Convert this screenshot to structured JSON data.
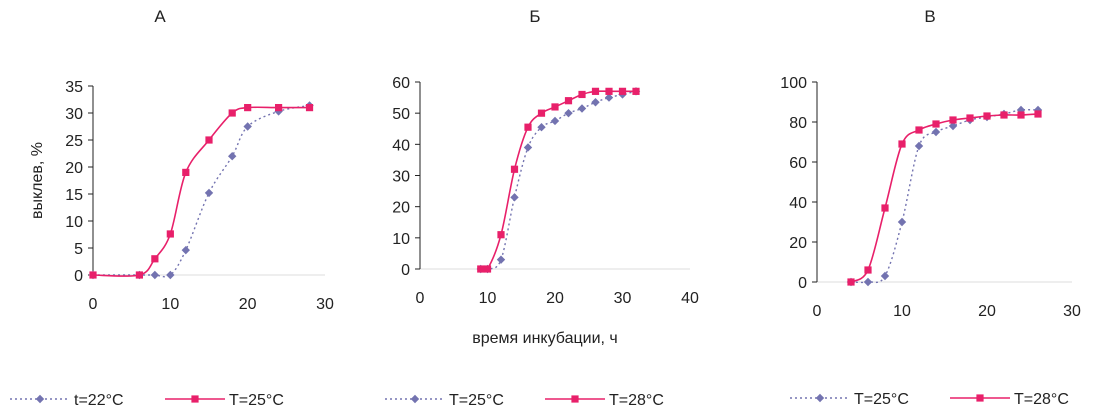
{
  "colors": {
    "series_dotted": "#7373b0",
    "series_solid": "#e8206a",
    "axis": "#222222",
    "text": "#222222"
  },
  "chart_data": [
    {
      "type": "line",
      "title": "А",
      "ylabel": "выклев, %",
      "xlabel": "",
      "xlim": [
        0,
        30
      ],
      "ylim": [
        0,
        35
      ],
      "x_ticks": [
        "0",
        "10",
        "20",
        "30"
      ],
      "y_ticks": [
        "0",
        "5",
        "10",
        "15",
        "20",
        "25",
        "30",
        "35"
      ],
      "grid": false,
      "legend_position": "bottom",
      "series": [
        {
          "name": "t=22°C",
          "marker": "diamond",
          "style": "dotted",
          "x": [
            0,
            6,
            8,
            10,
            12,
            15,
            18,
            20,
            24,
            28
          ],
          "y": [
            0,
            0,
            0,
            0,
            4.6,
            15.2,
            22,
            27.5,
            30.3,
            31.4
          ]
        },
        {
          "name": "T=25°C",
          "marker": "square",
          "style": "solid",
          "x": [
            0,
            6,
            8,
            10,
            12,
            15,
            18,
            20,
            24,
            28
          ],
          "y": [
            0,
            0,
            3,
            7.6,
            19,
            25,
            30,
            31,
            31,
            31
          ]
        }
      ]
    },
    {
      "type": "line",
      "title": "Б",
      "ylabel": "",
      "xlabel": "время инкубации, ч",
      "xlim": [
        0,
        40
      ],
      "ylim": [
        0,
        60
      ],
      "x_ticks": [
        "0",
        "10",
        "20",
        "30",
        "40"
      ],
      "y_ticks": [
        "0",
        "10",
        "20",
        "30",
        "40",
        "50",
        "60"
      ],
      "grid": false,
      "legend_position": "bottom",
      "series": [
        {
          "name": "T=25°C",
          "marker": "diamond",
          "style": "dotted",
          "x": [
            9,
            10,
            12,
            14,
            16,
            18,
            20,
            22,
            24,
            26,
            28,
            30,
            32
          ],
          "y": [
            0,
            0,
            3,
            23,
            39,
            45.5,
            47.5,
            50,
            51.5,
            53.5,
            55,
            56,
            57
          ]
        },
        {
          "name": "T=28°C",
          "marker": "square",
          "style": "solid",
          "x": [
            9,
            10,
            12,
            14,
            16,
            18,
            20,
            22,
            24,
            26,
            28,
            30,
            32
          ],
          "y": [
            0,
            0,
            11,
            32,
            45.5,
            50,
            52,
            54,
            56,
            57,
            57,
            57,
            57
          ]
        }
      ]
    },
    {
      "type": "line",
      "title": "В",
      "ylabel": "",
      "xlabel": "",
      "xlim": [
        0,
        30
      ],
      "ylim": [
        0,
        100
      ],
      "x_ticks": [
        "0",
        "10",
        "20",
        "30"
      ],
      "y_ticks": [
        "0",
        "20",
        "40",
        "60",
        "80",
        "100"
      ],
      "grid": false,
      "legend_position": "bottom",
      "series": [
        {
          "name": "T=25°C",
          "marker": "diamond",
          "style": "dotted",
          "x": [
            4,
            6,
            8,
            10,
            12,
            14,
            16,
            18,
            20,
            22,
            24,
            26
          ],
          "y": [
            0,
            0,
            3,
            30,
            68,
            75,
            78,
            81,
            82.5,
            84,
            86,
            86
          ]
        },
        {
          "name": "T=28°C",
          "marker": "square",
          "style": "solid",
          "x": [
            4,
            6,
            8,
            10,
            12,
            14,
            16,
            18,
            20,
            22,
            24,
            26
          ],
          "y": [
            0,
            6,
            37,
            69,
            76,
            79,
            81,
            82,
            83,
            83.5,
            83.5,
            84
          ]
        }
      ]
    }
  ]
}
